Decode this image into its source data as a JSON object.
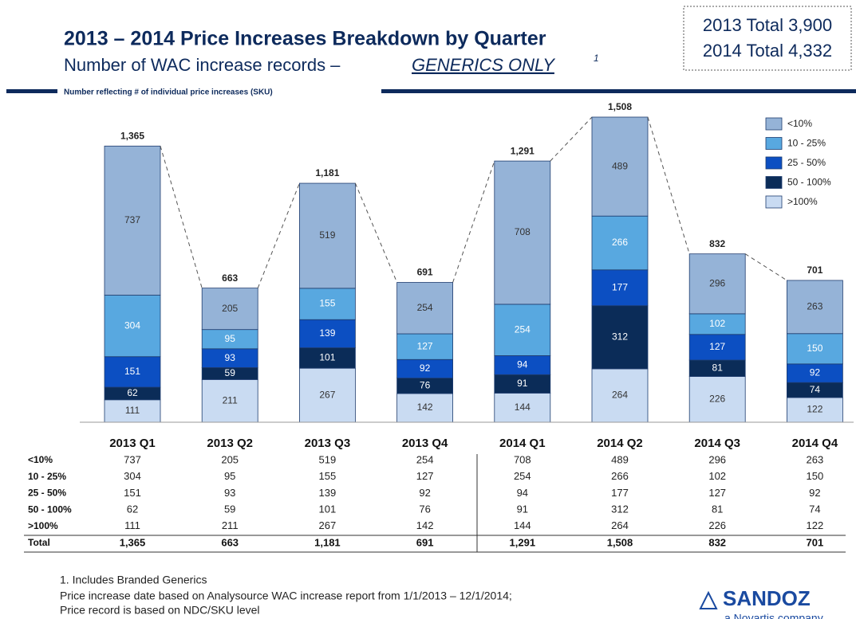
{
  "chart_data": {
    "type": "bar",
    "stacked": true,
    "title": "2013 – 2014 Price Increases Breakdown by Quarter",
    "subtitle": "Number of WAC increase records –",
    "subtitle_emphasis": "GENERICS ONLY",
    "subtitle_footnote": "1",
    "note": "Number reflecting # of individual price increases (SKU)",
    "summary": [
      "2013 Total 3,900",
      "2014 Total 4,332"
    ],
    "categories": [
      "2013 Q1",
      "2013 Q2",
      "2013 Q3",
      "2013 Q4",
      "2014 Q1",
      "2014 Q2",
      "2014 Q3",
      "2014 Q4"
    ],
    "series": [
      {
        "name": "<10%",
        "color": "#95b3d7",
        "values": [
          737,
          205,
          519,
          254,
          708,
          489,
          296,
          263
        ]
      },
      {
        "name": "10 - 25%",
        "color": "#58a8e0",
        "values": [
          304,
          95,
          155,
          127,
          254,
          266,
          102,
          150
        ]
      },
      {
        "name": "25 - 50%",
        "color": "#0c4fc2",
        "values": [
          151,
          93,
          139,
          92,
          94,
          177,
          127,
          92
        ]
      },
      {
        "name": "50 - 100%",
        "color": "#0b2c58",
        "values": [
          62,
          59,
          101,
          76,
          91,
          312,
          81,
          74
        ]
      },
      {
        "name": ">100%",
        "color": "#c9dbf2",
        "values": [
          111,
          211,
          267,
          142,
          144,
          264,
          226,
          122
        ]
      }
    ],
    "totals": [
      1365,
      663,
      1181,
      691,
      1291,
      1508,
      832,
      701
    ],
    "total_labels": [
      "1,365",
      "663",
      "1,181",
      "691",
      "1,291",
      "1,508",
      "832",
      "701"
    ],
    "total_row_label": "Total",
    "legend": "upper right",
    "footnotes": [
      "1. Includes Branded Generics",
      "Price increase date based on Analysource  WAC increase report from 1/1/2013 – 12/1/2014;",
      "Price record is based on NDC/SKU level"
    ],
    "logo": "SANDOZ",
    "logo_tagline": "a Novartis company"
  }
}
